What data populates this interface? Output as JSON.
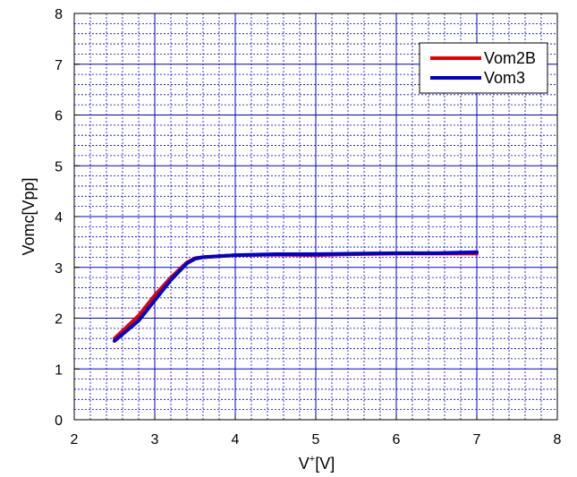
{
  "chart_data": {
    "type": "line",
    "title": "",
    "xlabel": {
      "base": "V",
      "sup": "+",
      "rest": "[V]"
    },
    "ylabel": "Vomc[Vpp]",
    "xlim": [
      2,
      8
    ],
    "ylim": [
      0,
      8
    ],
    "x_ticks": [
      2,
      3,
      4,
      5,
      6,
      7,
      8
    ],
    "y_ticks": [
      0,
      1,
      2,
      3,
      4,
      5,
      6,
      7,
      8
    ],
    "x_minor_step": 0.2,
    "y_minor_step": 0.2,
    "grid": true,
    "legend_position": "top-right",
    "colors": {
      "grid": "#0000cc",
      "axis": "#000000"
    },
    "series": [
      {
        "name": "Vom2B",
        "color": "#e60000",
        "x": [
          2.5,
          2.8,
          3.0,
          3.2,
          3.4,
          3.5,
          3.6,
          3.8,
          4.0,
          4.5,
          5.0,
          5.5,
          6.0,
          6.5,
          7.0
        ],
        "y": [
          1.6,
          2.05,
          2.45,
          2.8,
          3.1,
          3.18,
          3.2,
          3.22,
          3.24,
          3.25,
          3.24,
          3.26,
          3.27,
          3.27,
          3.27
        ]
      },
      {
        "name": "Vom3",
        "color": "#0000cc",
        "x": [
          2.5,
          2.8,
          3.0,
          3.2,
          3.4,
          3.5,
          3.6,
          3.8,
          4.0,
          4.5,
          5.0,
          5.5,
          6.0,
          6.5,
          7.0
        ],
        "y": [
          1.55,
          1.95,
          2.35,
          2.75,
          3.08,
          3.17,
          3.2,
          3.22,
          3.24,
          3.26,
          3.26,
          3.27,
          3.28,
          3.28,
          3.3
        ]
      }
    ]
  }
}
